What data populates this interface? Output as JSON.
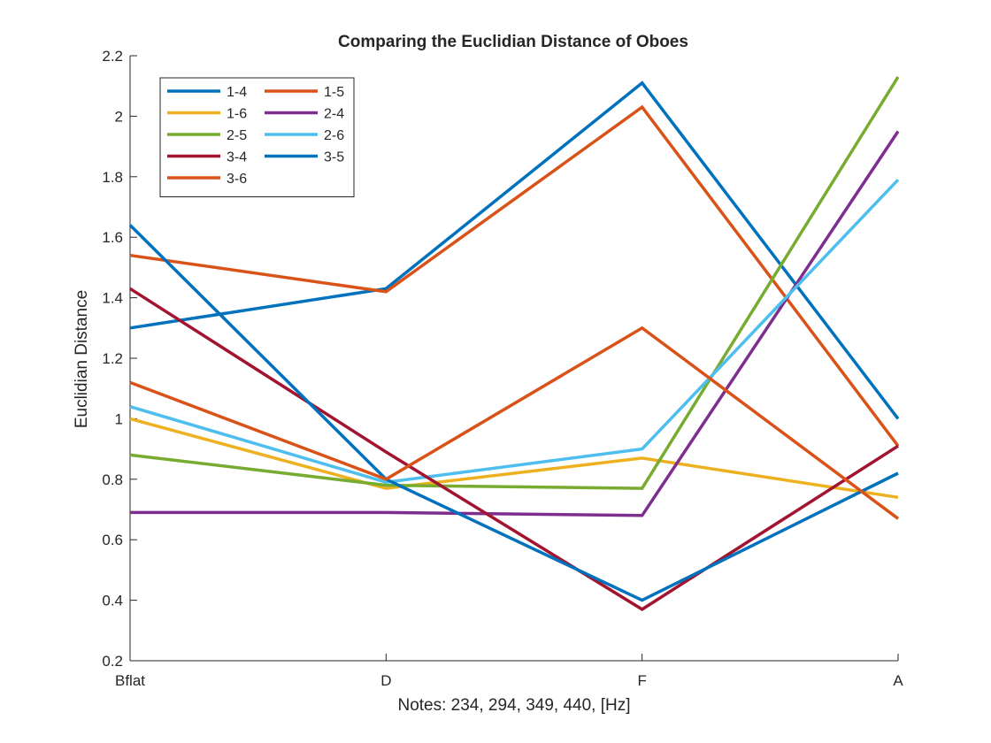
{
  "chart_data": {
    "type": "line",
    "title": "Comparing the Euclidian Distance of Oboes",
    "xlabel": "Notes: 234, 294, 349, 440, [Hz]",
    "ylabel": "Euclidian Distance",
    "categories": [
      "Bflat",
      "D",
      "F",
      "A"
    ],
    "ylim": [
      0.2,
      2.2
    ],
    "yticks": [
      "0.2",
      "0.4",
      "0.6",
      "0.8",
      "1",
      "1.2",
      "1.4",
      "1.6",
      "1.8",
      "2",
      "2.2"
    ],
    "grid": false,
    "legend_position": "top-left",
    "series": [
      {
        "name": "1-4",
        "color": "#0072BD",
        "values": [
          1.3,
          1.43,
          2.11,
          1.0
        ]
      },
      {
        "name": "1-5",
        "color": "#D95319",
        "values": [
          1.54,
          1.42,
          2.03,
          0.91
        ]
      },
      {
        "name": "1-6",
        "color": "#EDB120",
        "values": [
          1.0,
          0.77,
          0.87,
          0.74
        ]
      },
      {
        "name": "2-4",
        "color": "#7E2F8E",
        "values": [
          0.69,
          0.69,
          0.68,
          1.95
        ]
      },
      {
        "name": "2-5",
        "color": "#77AC30",
        "values": [
          0.88,
          0.78,
          0.77,
          2.13
        ]
      },
      {
        "name": "2-6",
        "color": "#4DBEEE",
        "values": [
          1.04,
          0.79,
          0.9,
          1.79
        ]
      },
      {
        "name": "3-4",
        "color": "#A2142F",
        "values": [
          1.43,
          0.89,
          0.37,
          0.91
        ]
      },
      {
        "name": "3-5",
        "color": "#0072BD",
        "values": [
          1.64,
          0.8,
          0.4,
          0.82
        ]
      },
      {
        "name": "3-6",
        "color": "#D95319",
        "values": [
          1.12,
          0.8,
          1.3,
          0.67
        ]
      }
    ]
  }
}
